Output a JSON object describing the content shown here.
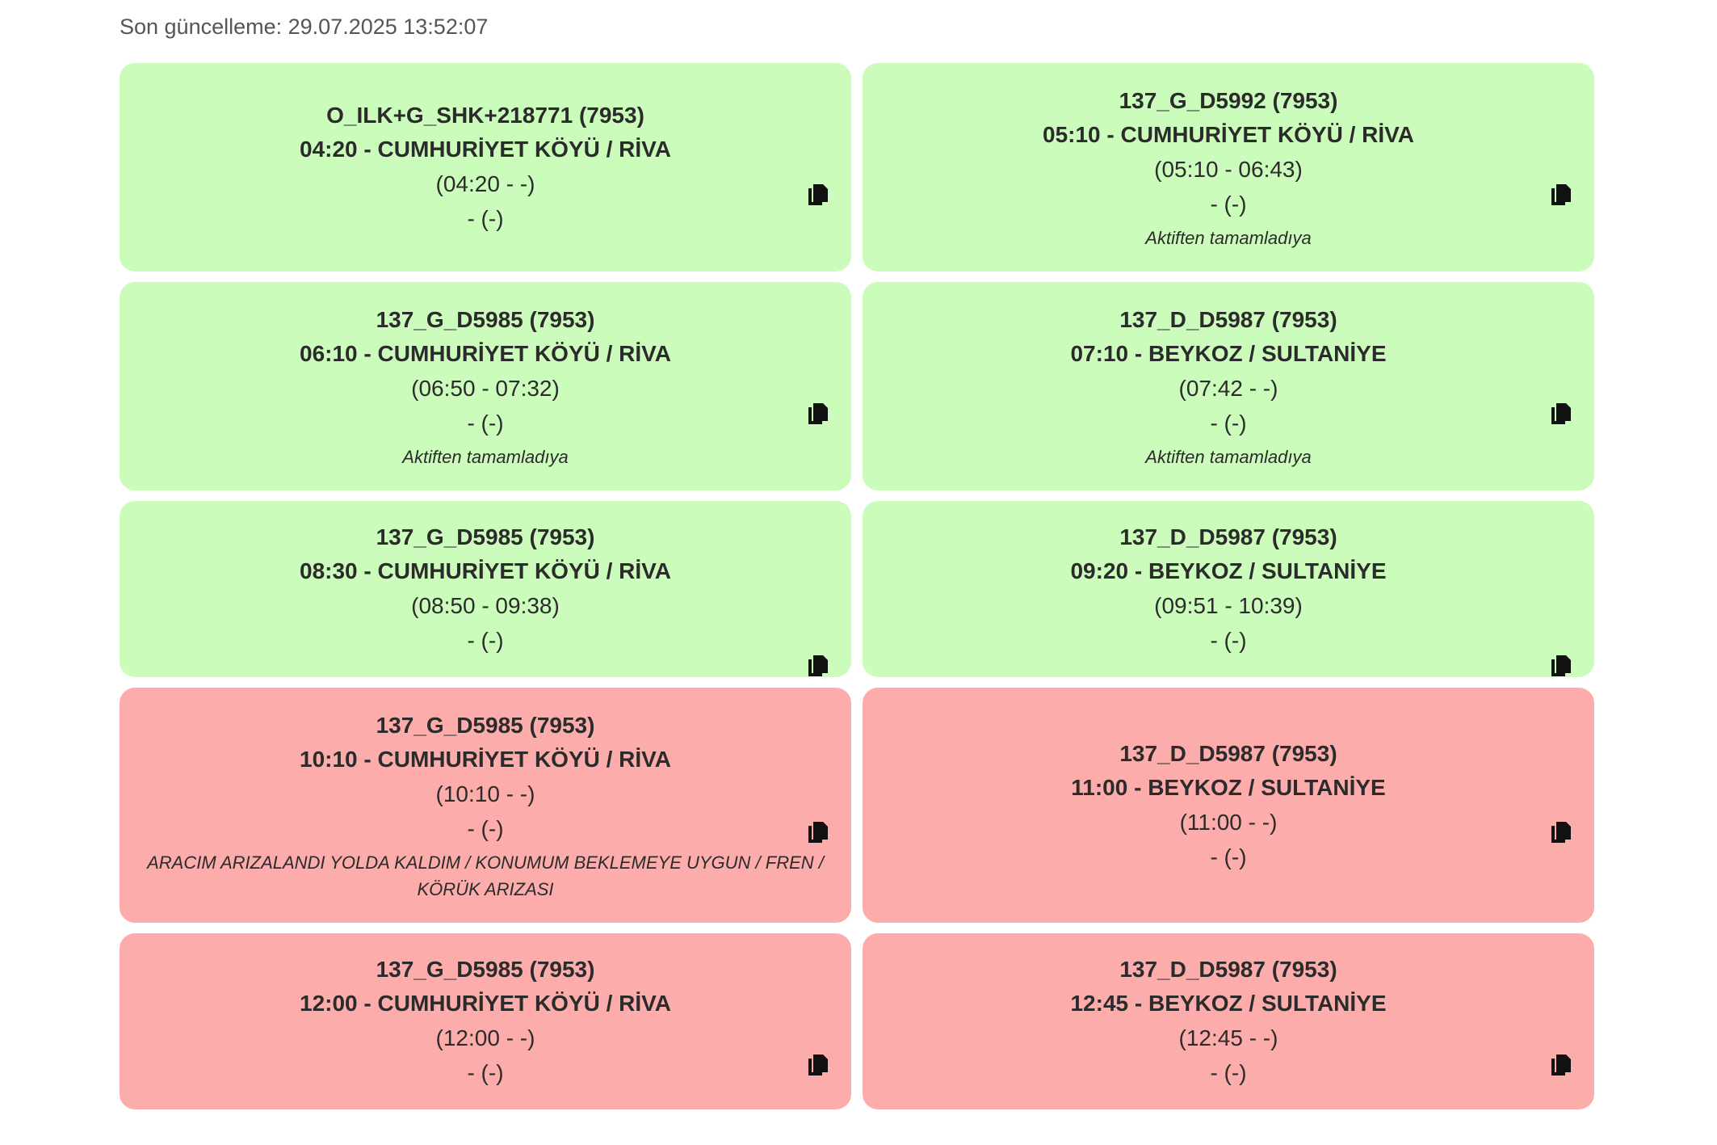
{
  "header": {
    "last_update": "Son güncelleme: 29.07.2025 13:52:07"
  },
  "colors": {
    "completed": "#ccfcbc",
    "failed": "#fdacac"
  },
  "cards": [
    {
      "status": "green",
      "code": "O_ILK+G_SHK+218771 (7953)",
      "route": "04:20 - CUMHURİYET KÖYÜ / RİVA",
      "times": "(04:20 - -)",
      "extra": "- (-)",
      "note": ""
    },
    {
      "status": "green",
      "code": "137_G_D5992 (7953)",
      "route": "05:10 - CUMHURİYET KÖYÜ / RİVA",
      "times": "(05:10 - 06:43)",
      "extra": "- (-)",
      "note": "Aktiften tamamladıya"
    },
    {
      "status": "green",
      "code": "137_G_D5985 (7953)",
      "route": "06:10 - CUMHURİYET KÖYÜ / RİVA",
      "times": "(06:50 - 07:32)",
      "extra": "- (-)",
      "note": "Aktiften tamamladıya"
    },
    {
      "status": "green",
      "code": "137_D_D5987 (7953)",
      "route": "07:10 - BEYKOZ / SULTANİYE",
      "times": "(07:42 - -)",
      "extra": "- (-)",
      "note": "Aktiften tamamladıya"
    },
    {
      "status": "green",
      "code": "137_G_D5985 (7953)",
      "route": "08:30 - CUMHURİYET KÖYÜ / RİVA",
      "times": "(08:50 - 09:38)",
      "extra": "- (-)",
      "note": ""
    },
    {
      "status": "green",
      "code": "137_D_D5987 (7953)",
      "route": "09:20 - BEYKOZ / SULTANİYE",
      "times": "(09:51 - 10:39)",
      "extra": "- (-)",
      "note": ""
    },
    {
      "status": "red",
      "code": "137_G_D5985 (7953)",
      "route": "10:10 - CUMHURİYET KÖYÜ / RİVA",
      "times": "(10:10 - -)",
      "extra": "- (-)",
      "note": "ARACIM ARIZALANDI YOLDA KALDIM / KONUMUM BEKLEMEYE UYGUN / FREN / KÖRÜK ARIZASI"
    },
    {
      "status": "red",
      "code": "137_D_D5987 (7953)",
      "route": "11:00 - BEYKOZ / SULTANİYE",
      "times": "(11:00 - -)",
      "extra": "- (-)",
      "note": ""
    },
    {
      "status": "red",
      "code": "137_G_D5985 (7953)",
      "route": "12:00 - CUMHURİYET KÖYÜ / RİVA",
      "times": "(12:00 - -)",
      "extra": "- (-)",
      "note": ""
    },
    {
      "status": "red",
      "code": "137_D_D5987 (7953)",
      "route": "12:45 - BEYKOZ / SULTANİYE",
      "times": "(12:45 - -)",
      "extra": "- (-)",
      "note": ""
    }
  ]
}
